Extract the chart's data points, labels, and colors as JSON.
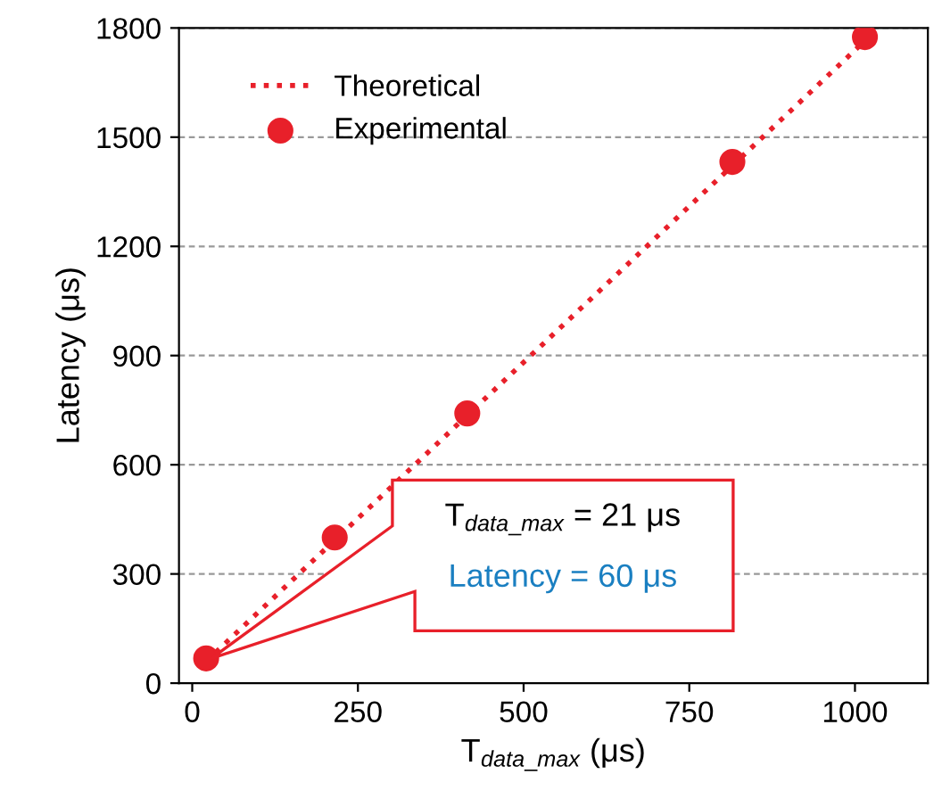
{
  "chart_data": {
    "type": "scatter",
    "xlabel": "T$_{data_max}$ (μs)",
    "ylabel": "Latency (μs)",
    "xlim": [
      -20,
      1110
    ],
    "ylim": [
      0,
      1800
    ],
    "xticks": [
      0,
      250,
      500,
      750,
      1000
    ],
    "yticks": [
      0,
      300,
      600,
      900,
      1200,
      1500,
      1800
    ],
    "grid": "y",
    "legend": "top left",
    "series": [
      {
        "name": "Theoretical",
        "type": "line",
        "line_style": "dotted",
        "marker": "none",
        "color": "#e8202a",
        "x": [
          21,
          1021
        ],
        "values": [
          60,
          1775
        ]
      },
      {
        "name": "Experimental",
        "type": "scatter",
        "marker": "circle",
        "color": "#e8202a",
        "x": [
          21,
          215,
          415,
          815,
          1015
        ],
        "values": [
          68,
          400,
          741,
          1432,
          1775
        ]
      }
    ],
    "annotations": [
      "T$_{data_max}$ = 21 μs",
      "Latency = 60 μs"
    ]
  }
}
